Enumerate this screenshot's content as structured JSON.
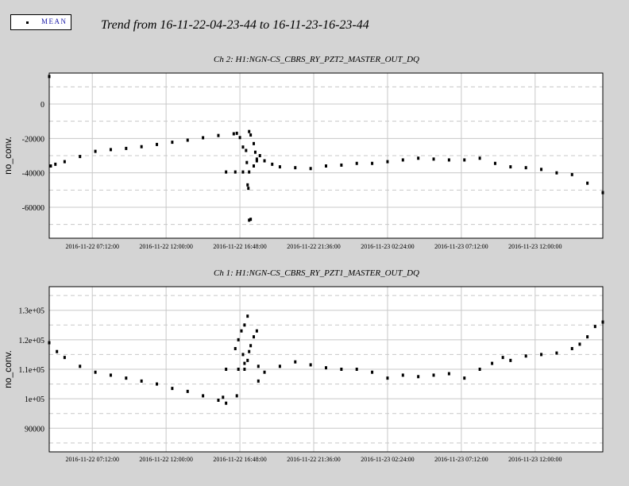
{
  "legend": {
    "label": "MEAN"
  },
  "title": "Trend from 16-11-22-04-23-44 to 16-11-23-16-23-44",
  "colors": {
    "background": "#d4d4d4",
    "plot": "#ffffff",
    "grid": "#c8c8c8",
    "data": "#000000",
    "legend_text": "#1a1aa8"
  },
  "chart_data": [
    {
      "type": "scatter",
      "title": "Ch 2: H1:NGN-CS_CBRS_RY_PZT2_MASTER_OUT_DQ",
      "ylabel": "no_conv.",
      "ylim": [
        -78000,
        18000
      ],
      "yticks": [
        0,
        -20000,
        -40000,
        -60000
      ],
      "ytick_labels": [
        "0",
        "-20000",
        "-40000",
        "-60000"
      ],
      "xlim": [
        0,
        36
      ],
      "xticks": [
        2.8,
        7.6,
        12.4,
        17.2,
        22.0,
        26.8,
        31.6
      ],
      "xtick_labels": [
        "2016-11-22 07:12:00",
        "2016-11-22 12:00:00",
        "2016-11-22 16:48:00",
        "2016-11-22 21:36:00",
        "2016-11-23 02:24:00",
        "2016-11-23 07:12:00",
        "2016-11-23 12:00:00"
      ],
      "series": [
        {
          "values": [
            [
              0,
              16000
            ],
            [
              0.1,
              -36000
            ],
            [
              0.4,
              -35000
            ],
            [
              1,
              -33500
            ],
            [
              2,
              -30500
            ],
            [
              3,
              -27500
            ],
            [
              4,
              -26500
            ],
            [
              5,
              -25800
            ],
            [
              6,
              -24800
            ],
            [
              7,
              -23500
            ],
            [
              8,
              -22200
            ],
            [
              9,
              -21000
            ],
            [
              10,
              -19600
            ],
            [
              11,
              -18300
            ],
            [
              12,
              -17300
            ],
            [
              12.2,
              -17000
            ],
            [
              11.5,
              -39500
            ],
            [
              12.1,
              -39500
            ],
            [
              12.6,
              -39500
            ],
            [
              13.0,
              -39500
            ],
            [
              12.4,
              -19500
            ],
            [
              12.6,
              -25000
            ],
            [
              12.8,
              -27000
            ],
            [
              12.85,
              -34000
            ],
            [
              12.9,
              -47000
            ],
            [
              12.95,
              -49000
            ],
            [
              13.0,
              -67500
            ],
            [
              13.1,
              -67000
            ],
            [
              13.0,
              -16000
            ],
            [
              13.1,
              -18000
            ],
            [
              13.3,
              -23000
            ],
            [
              13.4,
              -28000
            ],
            [
              13.5,
              -32000
            ],
            [
              13.3,
              -36000
            ],
            [
              13.5,
              -33000
            ],
            [
              13.7,
              -30000
            ],
            [
              14,
              -33000
            ],
            [
              14.5,
              -35000
            ],
            [
              15,
              -36500
            ],
            [
              16,
              -37000
            ],
            [
              17,
              -37500
            ],
            [
              18,
              -36000
            ],
            [
              19,
              -35500
            ],
            [
              20,
              -34500
            ],
            [
              21,
              -34500
            ],
            [
              22,
              -33500
            ],
            [
              23,
              -32500
            ],
            [
              24,
              -31500
            ],
            [
              25,
              -32000
            ],
            [
              26,
              -32500
            ],
            [
              27,
              -32500
            ],
            [
              28,
              -31500
            ],
            [
              29,
              -34500
            ],
            [
              30,
              -36500
            ],
            [
              31,
              -37000
            ],
            [
              32,
              -38000
            ],
            [
              33,
              -40000
            ],
            [
              34,
              -41000
            ],
            [
              35,
              -46000
            ],
            [
              36,
              -51500
            ]
          ]
        }
      ]
    },
    {
      "type": "scatter",
      "title": "Ch 1: H1:NGN-CS_CBRS_RY_PZT1_MASTER_OUT_DQ",
      "ylabel": "no_conv.",
      "ylim": [
        82000,
        138000
      ],
      "yticks": [
        90000,
        100000,
        110000,
        120000,
        130000
      ],
      "ytick_labels": [
        "90000",
        "1e+05",
        "1.1e+05",
        "1.2e+05",
        "1.3e+05"
      ],
      "xlim": [
        0,
        36
      ],
      "xticks": [
        2.8,
        7.6,
        12.4,
        17.2,
        22.0,
        26.8,
        31.6
      ],
      "xtick_labels": [
        "2016-11-22 07:12:00",
        "2016-11-22 12:00:00",
        "2016-11-22 16:48:00",
        "2016-11-22 21:36:00",
        "2016-11-23 02:24:00",
        "2016-11-23 07:12:00",
        "2016-11-23 12:00:00"
      ],
      "series": [
        {
          "values": [
            [
              0,
              119000
            ],
            [
              0.5,
              116000
            ],
            [
              1,
              114000
            ],
            [
              2,
              111000
            ],
            [
              3,
              109000
            ],
            [
              4,
              108000
            ],
            [
              5,
              107000
            ],
            [
              6,
              106000
            ],
            [
              7,
              105000
            ],
            [
              8,
              103500
            ],
            [
              9,
              102500
            ],
            [
              10,
              101000
            ],
            [
              11,
              99500
            ],
            [
              11.5,
              98500
            ],
            [
              11.3,
              100500
            ],
            [
              11.5,
              110000
            ],
            [
              12.3,
              110000
            ],
            [
              12.7,
              110000
            ],
            [
              12.1,
              117000
            ],
            [
              12.3,
              120000
            ],
            [
              12.5,
              123000
            ],
            [
              12.7,
              125000
            ],
            [
              12.9,
              128000
            ],
            [
              12.6,
              115000
            ],
            [
              12.2,
              101000
            ],
            [
              12.7,
              112000
            ],
            [
              12.9,
              113000
            ],
            [
              13,
              116000
            ],
            [
              13.1,
              118000
            ],
            [
              13.3,
              121000
            ],
            [
              13.5,
              123000
            ],
            [
              13.6,
              111000
            ],
            [
              13.6,
              106000
            ],
            [
              14,
              109000
            ],
            [
              15,
              111000
            ],
            [
              16,
              112500
            ],
            [
              17,
              111500
            ],
            [
              18,
              110500
            ],
            [
              19,
              110000
            ],
            [
              20,
              110000
            ],
            [
              21,
              109000
            ],
            [
              22,
              107000
            ],
            [
              23,
              108000
            ],
            [
              24,
              107500
            ],
            [
              25,
              108000
            ],
            [
              26,
              108500
            ],
            [
              27,
              107000
            ],
            [
              28,
              110000
            ],
            [
              28.8,
              112000
            ],
            [
              29.5,
              114000
            ],
            [
              30,
              113000
            ],
            [
              31,
              114500
            ],
            [
              32,
              115000
            ],
            [
              33,
              115500
            ],
            [
              34,
              117000
            ],
            [
              34.5,
              118500
            ],
            [
              35,
              121000
            ],
            [
              35.5,
              124500
            ],
            [
              36,
              126000
            ]
          ]
        }
      ]
    }
  ]
}
